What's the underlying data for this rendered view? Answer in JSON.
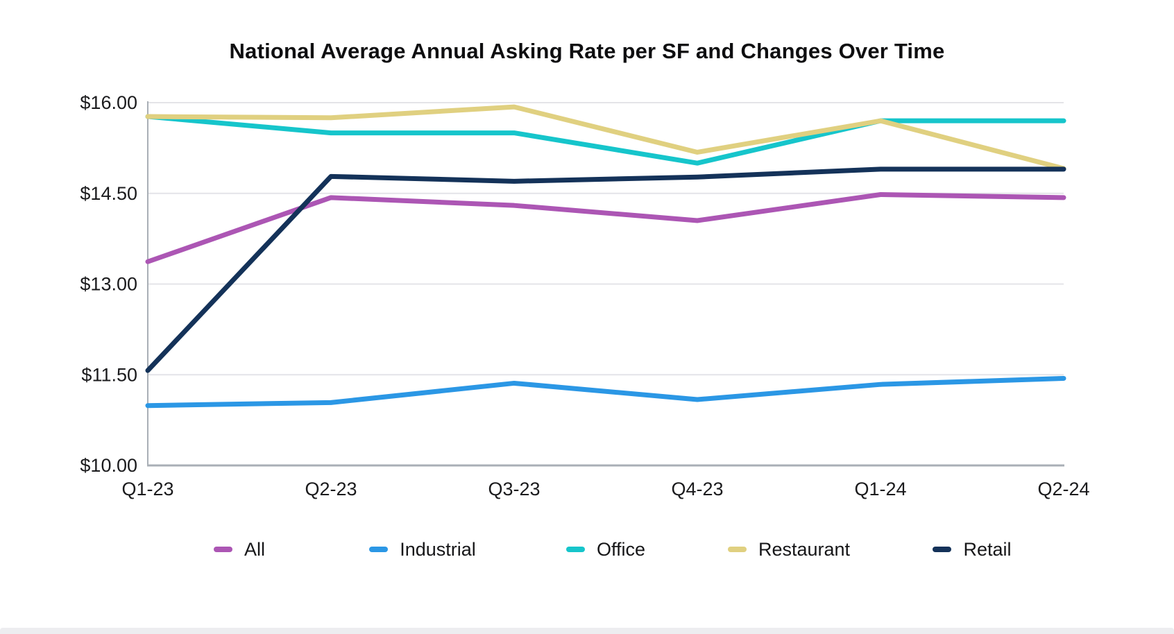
{
  "title": "National Average Annual Asking Rate per SF and Changes Over Time",
  "chart_data": {
    "type": "line",
    "title": "National Average Annual Asking Rate per SF and Changes Over Time",
    "categories": [
      "Q1-23",
      "Q2-23",
      "Q3-23",
      "Q4-23",
      "Q1-24",
      "Q2-24"
    ],
    "series": [
      {
        "name": "All",
        "color": "#AC56B4",
        "values": [
          13.37,
          14.43,
          14.3,
          14.05,
          14.48,
          14.43
        ]
      },
      {
        "name": "Industrial",
        "color": "#2B97E5",
        "values": [
          10.99,
          11.04,
          11.36,
          11.09,
          11.34,
          11.44
        ]
      },
      {
        "name": "Office",
        "color": "#16C5CB",
        "values": [
          15.77,
          15.5,
          15.5,
          15.0,
          15.7,
          15.7
        ]
      },
      {
        "name": "Restaurant",
        "color": "#E0D080",
        "values": [
          15.77,
          15.75,
          15.93,
          15.18,
          15.7,
          14.91
        ]
      },
      {
        "name": "Retail",
        "color": "#143259",
        "values": [
          11.57,
          14.78,
          14.7,
          14.77,
          14.9,
          14.9
        ]
      }
    ],
    "yticks": [
      16.0,
      14.5,
      13.0,
      11.5,
      10.0
    ],
    "ytick_labels": [
      "$16.00",
      "$14.50",
      "$13.00",
      "$11.50",
      "$10.00"
    ],
    "ylim": [
      10.0,
      16.0
    ],
    "xlabel": "",
    "ylabel": "",
    "grid": true,
    "legend_position": "bottom"
  },
  "colors": {
    "grid": "#e4e4e8",
    "axis": "#a9afb6",
    "text": "#1b1b1d"
  }
}
